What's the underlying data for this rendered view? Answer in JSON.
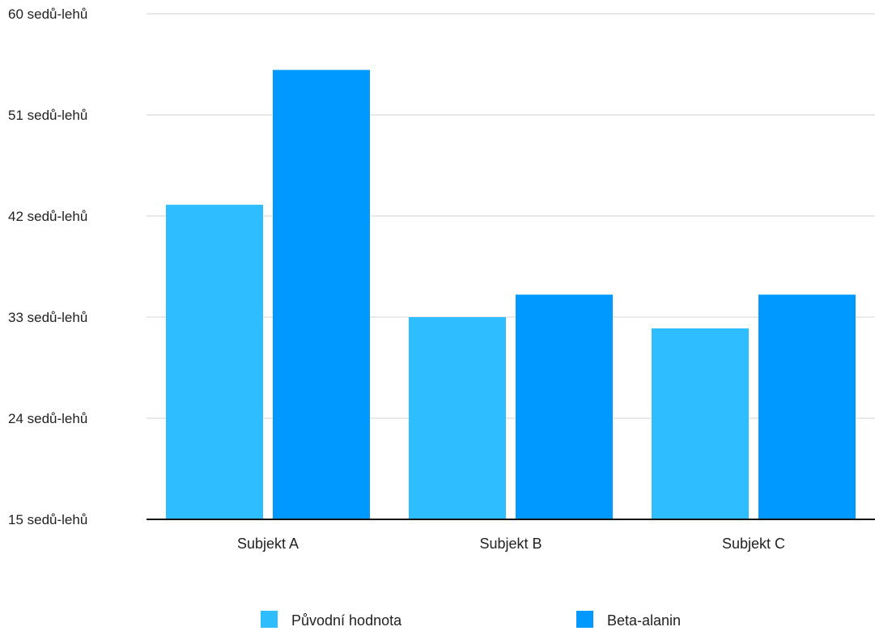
{
  "chart_data": {
    "type": "bar",
    "categories": [
      "Subjekt A",
      "Subjekt B",
      "Subjekt C"
    ],
    "series": [
      {
        "name": "Původní hodnota",
        "values": [
          43,
          33,
          32
        ],
        "color": "#2EBEFF"
      },
      {
        "name": "Beta-alanin",
        "values": [
          55,
          35,
          35
        ],
        "color": "#0099FF"
      }
    ],
    "ylim": [
      15,
      60
    ],
    "yticks": [
      15,
      24,
      33,
      42,
      51,
      60
    ],
    "ytick_labels": [
      "15 sedů-lehů",
      "24 sedů-lehů",
      "33 sedů-lehů",
      "42 sedů-lehů",
      "51 sedů-lehů",
      "60 sedů-lehů"
    ],
    "grid": true,
    "legend": "bottom",
    "title": "",
    "xlabel": "",
    "ylabel": ""
  }
}
